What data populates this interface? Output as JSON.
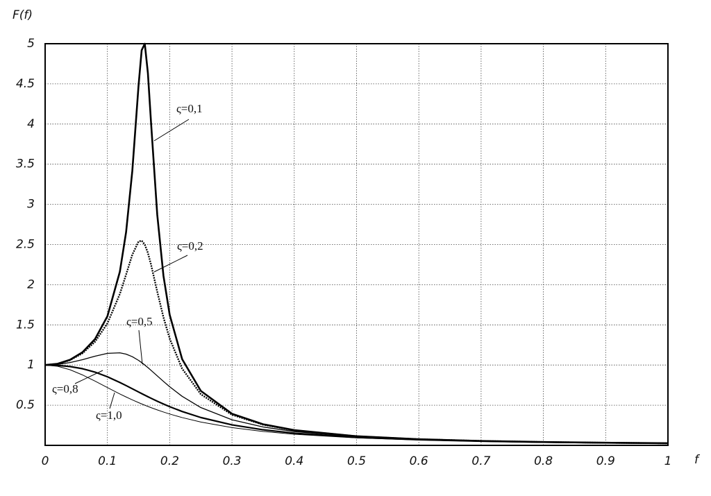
{
  "chart_data": {
    "type": "line",
    "y_label": "F(f)",
    "x_label": "f",
    "x": [
      0,
      0.02,
      0.04,
      0.06,
      0.08,
      0.1,
      0.12,
      0.13,
      0.14,
      0.15,
      0.155,
      0.16,
      0.165,
      0.17,
      0.18,
      0.19,
      0.2,
      0.22,
      0.25,
      0.3,
      0.35,
      0.4,
      0.5,
      0.6,
      0.7,
      0.8,
      0.9,
      1
    ],
    "series": [
      {
        "name": "ς=0,1",
        "color": "#000000",
        "values": [
          1,
          1.0156,
          1.0651,
          1.1592,
          1.3217,
          1.6076,
          2.1622,
          2.6547,
          3.4188,
          4.48,
          4.919,
          5,
          4.634,
          4.0235,
          2.8727,
          2.1099,
          1.6246,
          1.0728,
          0.678,
          0.3932,
          0.2624,
          0.1896,
          0.1138,
          0.0764,
          0.0551,
          0.0416,
          0.0326,
          0.0263
        ]
      },
      {
        "name": "ς=0,2",
        "color": "#000000",
        "values": [
          1,
          1.0146,
          1.0606,
          1.1463,
          1.2883,
          1.5182,
          1.8851,
          2.1266,
          2.374,
          2.5376,
          2.5487,
          2.5,
          2.3961,
          2.2516,
          1.9137,
          1.5934,
          1.3287,
          0.9553,
          0.6365,
          0.3809,
          0.2574,
          0.1871,
          0.1129,
          0.0761,
          0.0549,
          0.0415,
          0.0325,
          0.0262
        ]
      },
      {
        "name": "ς=0,5",
        "color": "#000000",
        "values": [
          1,
          1.0078,
          1.0307,
          1.0665,
          1.1094,
          1.1456,
          1.1517,
          1.1354,
          1.1039,
          1.0579,
          1.0302,
          1,
          0.9679,
          0.9343,
          0.8651,
          0.796,
          0.7295,
          0.6104,
          0.4704,
          0.3187,
          0.2287,
          0.172,
          0.1075,
          0.0736,
          0.0536,
          0.0408,
          0.0321,
          0.0259
        ]
      },
      {
        "name": "ς=0,8",
        "color": "#000000",
        "values": [
          1,
          0.9955,
          0.9811,
          0.9541,
          0.9119,
          0.8539,
          0.7829,
          0.7442,
          0.7045,
          0.6645,
          0.6447,
          0.625,
          0.6056,
          0.5866,
          0.5496,
          0.5145,
          0.4813,
          0.4213,
          0.3465,
          0.2554,
          0.194,
          0.1515,
          0.0991,
          0.0696,
          0.0514,
          0.0395,
          0.0313,
          0.0254
        ]
      },
      {
        "name": "ς=1,0",
        "color": "#000000",
        "values": [
          1,
          0.9846,
          0.9412,
          0.8767,
          0.8,
          0.7191,
          0.64,
          0.6024,
          0.5664,
          0.5322,
          0.5159,
          0.5,
          0.4846,
          0.4697,
          0.4414,
          0.4149,
          0.3902,
          0.346,
          0.2906,
          0.2214,
          0.1728,
          0.1379,
          0.0929,
          0.0664,
          0.0497,
          0.0385,
          0.0306,
          0.025
        ]
      }
    ],
    "xlim": [
      0,
      1
    ],
    "xticks": [
      0,
      0.1,
      0.2,
      0.3,
      0.4,
      0.5,
      0.6,
      0.7,
      0.8,
      0.9,
      1
    ],
    "ylim": [
      0,
      5
    ],
    "yticks": [
      0.5,
      1,
      1.5,
      2,
      2.5,
      3,
      3.5,
      4,
      4.5,
      5
    ],
    "grid": true
  }
}
